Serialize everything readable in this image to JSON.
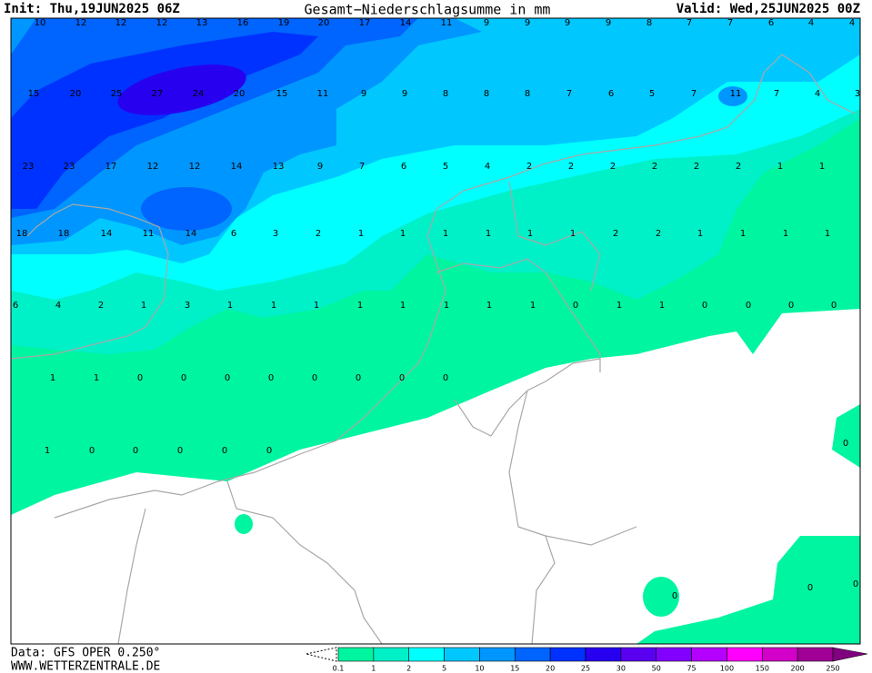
{
  "header": {
    "init": "Init: Thu,19JUN2025 06Z",
    "title": "Gesamt−Niederschlagsumme in mm",
    "valid": "Valid: Wed,25JUN2025 00Z"
  },
  "labels": [
    10,
    12,
    12,
    12,
    13,
    16,
    19,
    20,
    17,
    14,
    11,
    9,
    9,
    9,
    9,
    8,
    7,
    7,
    6,
    4,
    4,
    15,
    20,
    25,
    27,
    24,
    20,
    15,
    11,
    9,
    9,
    8,
    8,
    8,
    7,
    6,
    5,
    7,
    11,
    7,
    4,
    3,
    23,
    23,
    17,
    12,
    12,
    14,
    13,
    9,
    7,
    6,
    5,
    4,
    2,
    2,
    2,
    2,
    2,
    2,
    1,
    1,
    18,
    18,
    14,
    11,
    14,
    6,
    3,
    2,
    1,
    1,
    1,
    1,
    1,
    1,
    2,
    2,
    1,
    1,
    1,
    1,
    6,
    4,
    2,
    1,
    3,
    1,
    1,
    1,
    1,
    1,
    1,
    1,
    1,
    0,
    1,
    1,
    0,
    0,
    0,
    0,
    1,
    1,
    0,
    0,
    0,
    0,
    0,
    0,
    0,
    0,
    1,
    0,
    0,
    0,
    0,
    0,
    0,
    0,
    0,
    0
  ],
  "legend": {
    "ticks": [
      0.1,
      1,
      2,
      5,
      10,
      15,
      20,
      25,
      30,
      50,
      75,
      100,
      150,
      200,
      250
    ],
    "colors": [
      "#00f5a0",
      "#00f0c8",
      "#00ffff",
      "#00c8ff",
      "#0096ff",
      "#0064ff",
      "#0032ff",
      "#2800f0",
      "#5a00f0",
      "#8200ff",
      "#b400ff",
      "#ff00ff",
      "#d200c8",
      "#a00096",
      "#800080"
    ]
  },
  "footer": {
    "data": "Data: GFS OPER 0.250°",
    "site": "WWW.WETTERZENTRALE.DE"
  }
}
